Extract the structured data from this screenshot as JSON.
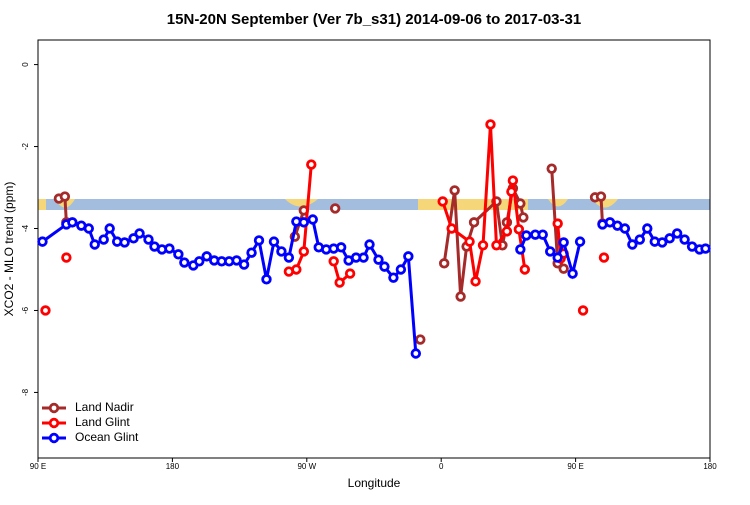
{
  "chart_data": {
    "type": "line",
    "title": "15N-20N September (Ver 7b_s31)   2014-09-06 to 2017-03-31",
    "x_label": "Longitude",
    "y_label": "XCO2 - MLO trend (ppm)",
    "xlim": [
      90,
      540
    ],
    "ylim": [
      -9.6,
      0.6
    ],
    "xticks": [
      {
        "value": 90,
        "label": "90 E"
      },
      {
        "value": 180,
        "label": "180"
      },
      {
        "value": 270,
        "label": "90 W"
      },
      {
        "value": 360,
        "label": "0"
      },
      {
        "value": 450,
        "label": "90 E"
      },
      {
        "value": 540,
        "label": "180"
      }
    ],
    "yticks": [
      0,
      -2,
      -4,
      -6,
      -8
    ],
    "legend": "bottom-left",
    "series": [
      {
        "name": "Land Nadir",
        "color": "#a52a2a",
        "x": [
          104,
          108,
          109,
          null,
          262,
          268,
          null,
          289,
          null,
          346,
          null,
          362,
          369,
          373,
          377,
          382,
          397,
          401,
          404,
          408,
          413,
          415,
          null,
          434,
          438,
          442,
          null,
          463,
          467,
          468
        ],
        "values": [
          -3.27,
          -3.22,
          -3.85,
          null,
          -4.2,
          -3.56,
          null,
          -3.51,
          null,
          -6.71,
          null,
          -4.85,
          -3.07,
          -5.66,
          -4.44,
          -3.85,
          -3.34,
          -4.41,
          -3.85,
          -3.02,
          -3.39,
          -3.73,
          null,
          -2.54,
          -4.85,
          -4.98,
          null,
          -3.24,
          -3.22,
          -3.88
        ]
      },
      {
        "name": "Land Glint",
        "color": "#ff0000",
        "x": [
          95,
          null,
          109,
          null,
          258,
          263,
          268,
          273,
          null,
          288,
          292,
          299,
          null,
          361,
          367,
          379,
          383,
          388,
          393,
          397,
          404,
          407,
          408,
          412,
          416,
          null,
          438,
          440,
          442,
          null,
          455,
          null,
          469
        ],
        "values": [
          -6.0,
          null,
          -4.71,
          null,
          -5.05,
          -5.0,
          -4.56,
          -2.44,
          null,
          -4.8,
          -5.32,
          -5.1,
          null,
          -3.34,
          -4.0,
          -4.32,
          -5.29,
          -4.41,
          -1.46,
          -4.41,
          -4.07,
          -3.1,
          -2.83,
          -4.02,
          -5.0,
          null,
          -3.88,
          -4.73,
          -4.61,
          null,
          -6.0,
          null,
          -4.71
        ]
      },
      {
        "name": "Ocean Glint",
        "color": "#0000ff",
        "x": [
          93,
          109,
          113,
          119,
          124,
          128,
          134,
          138,
          143,
          148,
          154,
          158,
          164,
          168,
          173,
          178,
          184,
          188,
          194,
          198,
          203,
          208,
          213,
          218,
          223,
          228,
          233,
          238,
          243,
          248,
          253,
          258,
          263,
          268,
          274,
          278,
          283,
          288,
          293,
          298,
          303,
          308,
          312,
          318,
          322,
          328,
          333,
          338,
          343,
          null,
          413,
          417,
          423,
          428,
          433,
          438,
          442,
          448,
          453,
          null,
          468,
          473,
          478,
          483,
          488,
          493,
          498,
          503,
          508,
          513,
          518,
          523,
          528,
          533,
          537
        ],
        "values": [
          -4.32,
          -3.9,
          -3.85,
          -3.93,
          -4.0,
          -4.39,
          -4.27,
          -4.0,
          -4.32,
          -4.34,
          -4.24,
          -4.12,
          -4.27,
          -4.44,
          -4.51,
          -4.49,
          -4.63,
          -4.83,
          -4.9,
          -4.8,
          -4.68,
          -4.78,
          -4.8,
          -4.8,
          -4.78,
          -4.88,
          -4.59,
          -4.29,
          -5.24,
          -4.32,
          -4.56,
          -4.71,
          -3.83,
          -3.85,
          -3.78,
          -4.46,
          -4.51,
          -4.49,
          -4.46,
          -4.78,
          -4.71,
          -4.71,
          -4.39,
          -4.76,
          -4.93,
          -5.2,
          -5.0,
          -4.68,
          -7.05,
          null,
          -4.51,
          -4.17,
          -4.15,
          -4.15,
          -4.56,
          -4.71,
          -4.34,
          -5.1,
          -4.32,
          null,
          -3.9,
          -3.85,
          -3.93,
          -4.0,
          -4.39,
          -4.27,
          -4.0,
          -4.32,
          -4.34,
          -4.24,
          -4.12,
          -4.27,
          -4.44,
          -4.51,
          -4.49
        ]
      }
    ]
  }
}
